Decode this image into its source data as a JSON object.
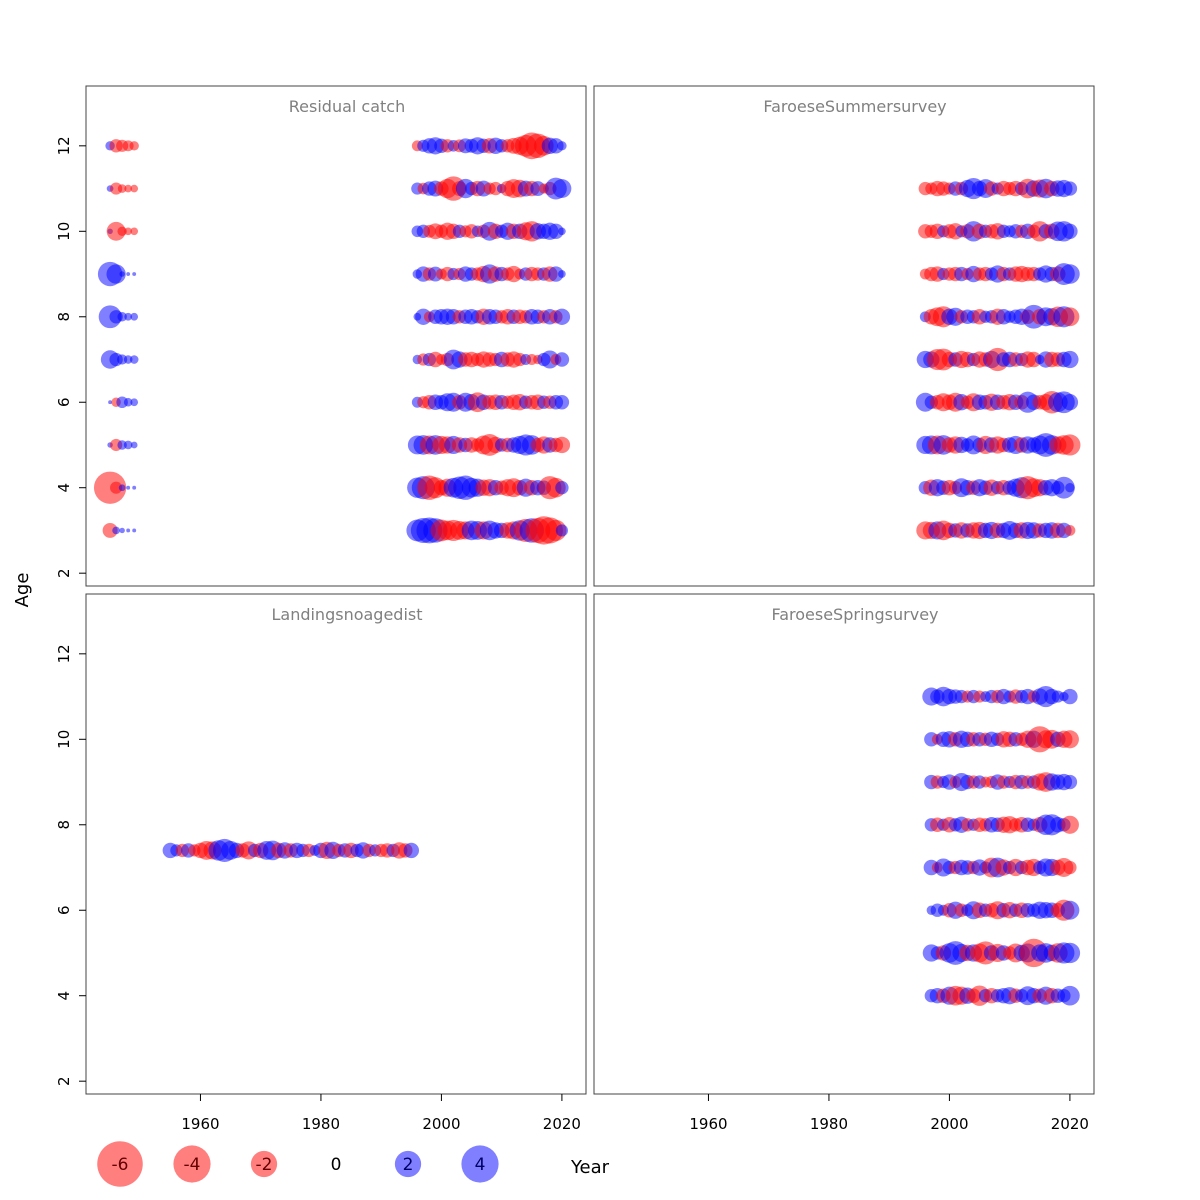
{
  "chart_data": {
    "type": "scatter",
    "subtype": "bubble-residuals",
    "xlabel": "Year",
    "ylabel": "Age",
    "xlim": [
      1941,
      2024
    ],
    "ylim": [
      1.7,
      13.4
    ],
    "x_ticks": [
      1960,
      1980,
      2000,
      2020
    ],
    "y_ticks": [
      2,
      4,
      6,
      8,
      10,
      12
    ],
    "colors": {
      "positive": "#0000ff",
      "negative": "#ff0000"
    },
    "legend": {
      "values": [
        -6,
        -4,
        -2,
        0,
        2,
        4
      ],
      "labels": [
        "-6",
        "-4",
        "-2",
        "0",
        "2",
        "4"
      ]
    },
    "panels": [
      {
        "title": "Residual catch",
        "ages": [
          3,
          4,
          5,
          6,
          7,
          8,
          9,
          10,
          11,
          12
        ],
        "early_years": [
          1945,
          1946,
          1947,
          1948,
          1949
        ],
        "early_residuals": {
          "12": [
            0.6,
            -1.2,
            -1.0,
            -0.8,
            -0.6
          ],
          "11": [
            0.3,
            -1.0,
            -0.5,
            -0.4,
            -0.4
          ],
          "10": [
            0.2,
            -2.4,
            -0.6,
            -0.4,
            -0.4
          ],
          "9": [
            4.0,
            2.5,
            0.2,
            0.1,
            0.1
          ],
          "8": [
            3.5,
            1.2,
            0.6,
            0.4,
            0.4
          ],
          "7": [
            2.3,
            1.2,
            0.7,
            0.5,
            0.5
          ],
          "6": [
            0.1,
            -0.6,
            0.9,
            0.5,
            0.4
          ],
          "5": [
            0.2,
            -1.0,
            0.6,
            0.5,
            0.3
          ],
          "4": [
            -7.0,
            -1.0,
            0.3,
            0.1,
            0.1
          ],
          "3": [
            -1.5,
            0.4,
            0.2,
            0.1,
            0.1
          ]
        },
        "late_years": [
          1996,
          1997,
          1998,
          1999,
          2000,
          2001,
          2002,
          2003,
          2004,
          2005,
          2006,
          2007,
          2008,
          2009,
          2010,
          2011,
          2012,
          2013,
          2014,
          2015,
          2016,
          2017,
          2018,
          2019,
          2020
        ],
        "late_residuals": {
          "12": [
            -0.8,
            1.0,
            1.6,
            2.0,
            1.4,
            -1.2,
            0.9,
            -1.1,
            1.5,
            1.3,
            2.0,
            1.4,
            -1.6,
            1.8,
            1.2,
            -1.2,
            -1.7,
            -2.2,
            -3.2,
            -4.8,
            -4.0,
            -2.6,
            1.8,
            1.6,
            0.6
          ],
          "11": [
            1.0,
            -0.9,
            1.4,
            1.7,
            -1.4,
            -2.5,
            -4.0,
            -1.5,
            2.5,
            1.2,
            -1.6,
            1.7,
            -1.0,
            -1.2,
            0.6,
            -1.6,
            -2.4,
            -2.1,
            1.7,
            -1.6,
            1.5,
            -0.7,
            -1.2,
            3.2,
            2.4
          ],
          "10": [
            0.9,
            1.2,
            -1.1,
            -1.7,
            -1.2,
            -2.0,
            -1.6,
            1.2,
            -1.0,
            -1.4,
            0.9,
            -1.2,
            2.4,
            -1.6,
            1.2,
            2.0,
            -1.6,
            1.6,
            -2.2,
            -2.8,
            1.8,
            1.6,
            2.0,
            1.6,
            0.4
          ],
          "9": [
            0.6,
            1.6,
            -1.2,
            1.5,
            -0.8,
            -1.4,
            1.0,
            -1.0,
            1.6,
            1.2,
            -1.2,
            -1.8,
            2.5,
            -1.6,
            1.4,
            -1.2,
            -1.8,
            -0.8,
            1.2,
            -1.4,
            -1.2,
            1.2,
            -1.6,
            1.6,
            0.4
          ],
          "8": [
            0.4,
            1.8,
            -0.8,
            1.4,
            1.6,
            1.8,
            1.6,
            -1.2,
            1.4,
            1.6,
            1.2,
            -1.8,
            1.6,
            1.4,
            -1.2,
            -1.6,
            1.4,
            -1.4,
            -1.2,
            1.6,
            1.4,
            -1.2,
            1.6,
            -1.2,
            1.8
          ],
          "7": [
            0.6,
            -1.0,
            1.2,
            -1.6,
            -0.8,
            -1.2,
            2.6,
            1.8,
            -1.4,
            -1.6,
            -1.2,
            -1.8,
            -1.4,
            -1.2,
            1.6,
            -1.4,
            -1.8,
            -1.2,
            0.8,
            -0.8,
            -0.6,
            1.2,
            2.2,
            -0.8,
            1.4
          ],
          "6": [
            0.8,
            -1.0,
            -1.4,
            1.6,
            1.4,
            2.2,
            2.4,
            -1.4,
            2.4,
            1.8,
            -2.6,
            1.6,
            -1.4,
            -1.6,
            1.4,
            -1.2,
            -1.6,
            -1.8,
            1.2,
            -1.4,
            -1.6,
            1.2,
            -1.2,
            1.4,
            1.4
          ],
          "5": [
            2.4,
            2.6,
            -2.4,
            2.6,
            -2.2,
            -2.0,
            2.2,
            -1.6,
            1.4,
            -1.6,
            -1.2,
            -2.4,
            -3.2,
            -1.8,
            1.2,
            -1.4,
            1.6,
            2.2,
            3.0,
            2.6,
            -1.4,
            -2.0,
            1.6,
            -1.4,
            -1.8
          ],
          "4": [
            2.8,
            3.6,
            -4.0,
            -3.0,
            -1.6,
            -2.2,
            2.6,
            3.4,
            4.0,
            2.6,
            2.2,
            -1.8,
            -2.0,
            1.6,
            -1.4,
            -2.0,
            -2.4,
            -1.6,
            2.2,
            -1.6,
            1.6,
            1.4,
            -3.6,
            -2.6,
            1.2
          ],
          "3": [
            3.2,
            4.2,
            4.5,
            4.0,
            -3.2,
            -2.6,
            -3.0,
            -2.4,
            -2.2,
            2.6,
            2.4,
            -2.2,
            2.6,
            1.8,
            1.6,
            -1.8,
            -2.2,
            2.8,
            -3.6,
            4.0,
            -4.2,
            -5.4,
            -4.6,
            -3.0,
            1.0
          ]
        }
      },
      {
        "title": "FaroeseSummersurvey",
        "ages": [
          3,
          4,
          5,
          6,
          7,
          8,
          9,
          10,
          11
        ],
        "years": [
          1996,
          1997,
          1998,
          1999,
          2000,
          2001,
          2002,
          2003,
          2004,
          2005,
          2006,
          2007,
          2008,
          2009,
          2010,
          2011,
          2012,
          2013,
          2014,
          2015,
          2016,
          2017,
          2018,
          2019,
          2020
        ],
        "residuals": {
          "11": [
            -1.2,
            -1.0,
            -1.6,
            -1.4,
            -1.0,
            1.4,
            -1.2,
            2.0,
            3.0,
            1.6,
            2.4,
            -1.4,
            1.0,
            -1.6,
            -1.2,
            -1.6,
            1.2,
            -2.6,
            1.8,
            -2.2,
            2.6,
            -1.6,
            1.8,
            2.0,
            1.4
          ],
          "10": [
            -1.4,
            -1.2,
            -1.6,
            1.0,
            -1.4,
            -1.8,
            1.0,
            -1.4,
            2.8,
            -1.6,
            1.2,
            -1.4,
            -1.8,
            1.2,
            1.0,
            1.4,
            -1.2,
            1.6,
            -1.2,
            -2.8,
            1.4,
            -1.6,
            2.6,
            2.8,
            1.6
          ],
          "9": [
            -0.8,
            -1.4,
            -1.6,
            1.0,
            -1.2,
            -1.4,
            1.4,
            -1.0,
            1.8,
            -1.2,
            -1.4,
            1.2,
            2.0,
            -1.4,
            1.2,
            -1.6,
            -1.8,
            -1.4,
            -1.4,
            1.2,
            2.0,
            1.4,
            -1.6,
            3.2,
            2.6
          ],
          "8": [
            0.8,
            -1.6,
            -2.4,
            -3.0,
            1.8,
            2.2,
            -1.2,
            1.4,
            1.2,
            -1.6,
            1.0,
            1.2,
            -1.8,
            1.6,
            1.0,
            1.4,
            1.8,
            -1.4,
            3.8,
            -1.6,
            2.4,
            2.0,
            -2.8,
            3.0,
            -2.4
          ],
          "7": [
            2.0,
            1.8,
            -3.0,
            -3.2,
            -1.6,
            1.4,
            -2.0,
            -1.6,
            1.2,
            -1.8,
            -1.4,
            2.0,
            -3.6,
            1.4,
            1.6,
            -1.4,
            1.2,
            -1.8,
            -1.6,
            0.6,
            1.8,
            -1.6,
            -1.4,
            1.6,
            2.0
          ],
          "6": [
            2.4,
            1.2,
            -1.4,
            -2.2,
            -1.6,
            -2.4,
            1.8,
            -1.2,
            -2.2,
            1.6,
            1.4,
            -2.0,
            1.6,
            -1.4,
            -1.8,
            1.6,
            -1.4,
            3.0,
            1.6,
            -1.4,
            -1.8,
            -3.4,
            2.6,
            3.2,
            1.8
          ],
          "5": [
            2.2,
            2.4,
            -2.4,
            2.6,
            -1.6,
            -2.0,
            1.8,
            1.2,
            2.4,
            1.4,
            -2.2,
            1.6,
            -2.0,
            -1.4,
            1.6,
            2.2,
            -1.6,
            2.0,
            1.6,
            2.4,
            3.8,
            2.6,
            -2.0,
            -2.6,
            -3.0
          ],
          "4": [
            1.2,
            -1.8,
            2.0,
            1.4,
            -1.6,
            -1.2,
            2.4,
            1.6,
            -1.4,
            2.0,
            1.4,
            -1.8,
            1.2,
            -1.6,
            1.4,
            2.2,
            3.0,
            -3.6,
            -2.4,
            -2.0,
            1.6,
            2.0,
            1.2,
            3.2,
            0.6
          ],
          "3": [
            -2.2,
            -2.0,
            2.2,
            -2.6,
            -1.6,
            1.4,
            -1.8,
            1.4,
            -1.8,
            -2.0,
            1.6,
            2.0,
            -1.6,
            1.6,
            2.4,
            1.6,
            -1.8,
            2.0,
            1.8,
            -1.4,
            1.6,
            1.8,
            -1.6,
            1.6,
            -0.8
          ]
        }
      },
      {
        "title": "Landingsnoagedist",
        "age": 7.4,
        "years": [
          1955,
          1956,
          1957,
          1958,
          1959,
          1960,
          1961,
          1962,
          1963,
          1964,
          1965,
          1966,
          1967,
          1968,
          1969,
          1970,
          1971,
          1972,
          1973,
          1974,
          1975,
          1976,
          1977,
          1978,
          1979,
          1980,
          1981,
          1982,
          1983,
          1984,
          1985,
          1986,
          1987,
          1988,
          1989,
          1990,
          1991,
          1992,
          1993,
          1994,
          1995
        ],
        "residuals": [
          1.6,
          1.0,
          -1.2,
          1.4,
          -1.0,
          -1.6,
          -2.4,
          -2.2,
          2.8,
          3.6,
          2.4,
          1.6,
          -1.4,
          -2.2,
          1.2,
          -1.6,
          2.4,
          2.6,
          -1.6,
          1.8,
          -1.4,
          1.6,
          1.2,
          -1.2,
          0.8,
          1.6,
          -2.0,
          2.0,
          -1.2,
          1.4,
          -1.6,
          1.2,
          1.8,
          -1.2,
          1.0,
          -1.2,
          -1.4,
          1.2,
          -1.8,
          -1.4,
          1.6
        ]
      },
      {
        "title": "FaroeseSpringsurvey",
        "ages": [
          4,
          5,
          6,
          7,
          8,
          9,
          10,
          11
        ],
        "years": [
          1997,
          1998,
          1999,
          2000,
          2001,
          2002,
          2003,
          2004,
          2005,
          2006,
          2007,
          2008,
          2009,
          2010,
          2011,
          2012,
          2013,
          2014,
          2015,
          2016,
          2017,
          2018,
          2019,
          2020
        ],
        "residuals": {
          "11": [
            2.2,
            1.4,
            2.6,
            1.6,
            1.4,
            1.2,
            -1.0,
            1.2,
            -1.0,
            0.8,
            1.2,
            -1.2,
            1.6,
            1.0,
            -1.4,
            1.2,
            1.6,
            -1.0,
            1.8,
            3.0,
            1.6,
            1.0,
            0.6,
            1.6
          ],
          "10": [
            1.4,
            -0.8,
            1.6,
            1.8,
            -1.4,
            2.0,
            1.6,
            -1.4,
            1.4,
            -1.2,
            1.6,
            1.2,
            -1.8,
            -1.6,
            1.4,
            -1.2,
            -2.0,
            2.0,
            -4.6,
            -2.2,
            -2.4,
            1.6,
            -2.0,
            -2.2
          ],
          "9": [
            1.4,
            -1.2,
            1.0,
            1.6,
            -1.0,
            2.2,
            1.4,
            -1.2,
            1.2,
            -0.8,
            -1.0,
            1.6,
            -1.2,
            1.0,
            -1.4,
            1.4,
            -1.2,
            1.2,
            -2.0,
            -2.6,
            2.0,
            1.6,
            1.8,
            1.4
          ],
          "8": [
            1.2,
            -1.4,
            1.0,
            -1.6,
            1.2,
            1.8,
            -1.2,
            1.0,
            -1.4,
            -1.2,
            1.6,
            1.4,
            -1.8,
            -2.0,
            -1.2,
            -1.6,
            1.4,
            1.0,
            -1.6,
            2.8,
            3.0,
            1.6,
            1.2,
            -2.2
          ],
          "7": [
            1.6,
            -0.8,
            2.2,
            1.2,
            -1.2,
            1.6,
            1.4,
            -1.2,
            1.8,
            1.0,
            -2.6,
            2.6,
            -1.8,
            1.2,
            -2.0,
            1.2,
            -1.6,
            -2.0,
            1.2,
            2.2,
            2.0,
            -1.6,
            -2.4,
            -1.2
          ],
          "6": [
            0.6,
            1.2,
            0.8,
            -1.4,
            2.0,
            -1.2,
            1.0,
            2.2,
            -1.6,
            1.2,
            -1.4,
            -2.2,
            1.4,
            -1.8,
            1.2,
            -1.6,
            1.4,
            1.2,
            2.0,
            1.8,
            1.6,
            -1.4,
            -3.0,
            2.4
          ],
          "5": [
            2.0,
            1.2,
            -1.6,
            2.6,
            3.8,
            2.2,
            -1.8,
            2.0,
            -2.4,
            -3.6,
            1.6,
            -2.2,
            1.6,
            -1.2,
            -2.4,
            1.8,
            2.4,
            -5.4,
            2.0,
            2.6,
            1.8,
            -2.6,
            3.0,
            2.8
          ],
          "4": [
            1.2,
            1.6,
            -1.4,
            2.2,
            -2.6,
            -2.2,
            1.8,
            -1.4,
            -2.8,
            1.2,
            -1.6,
            1.2,
            1.6,
            2.0,
            -1.4,
            1.2,
            2.4,
            1.6,
            -1.4,
            2.2,
            -1.6,
            1.4,
            1.2,
            2.6
          ]
        }
      }
    ]
  }
}
